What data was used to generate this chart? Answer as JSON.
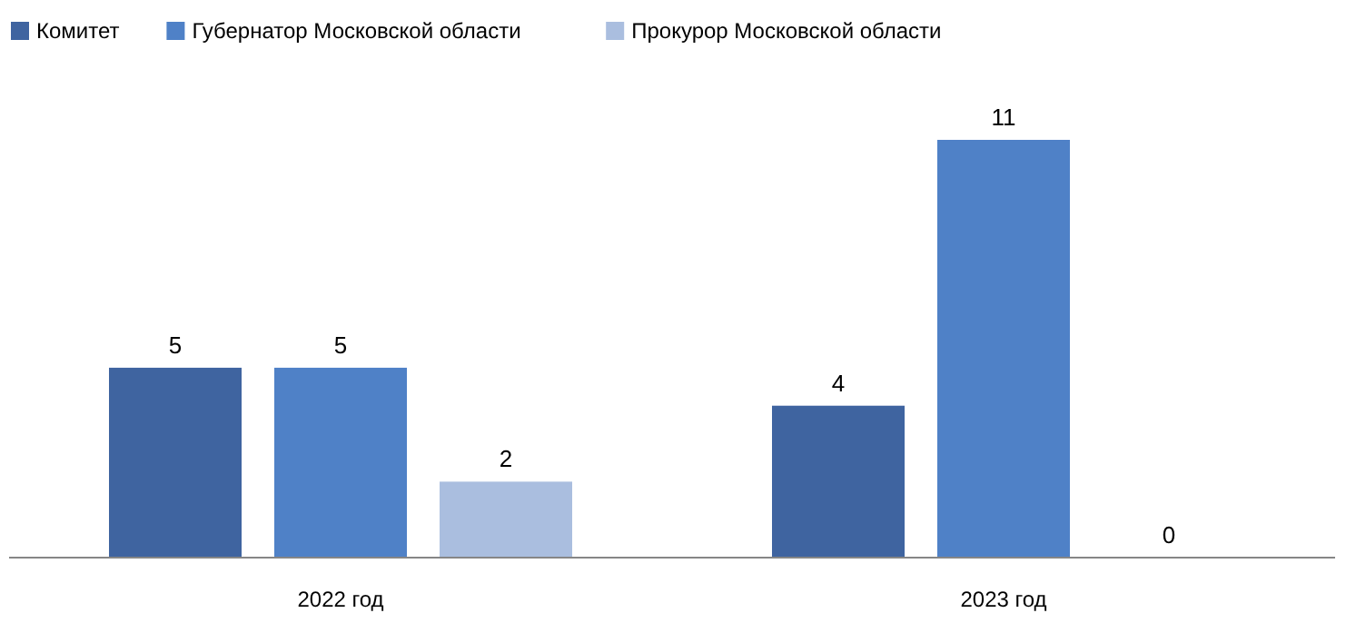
{
  "chart_data": {
    "type": "bar",
    "categories": [
      "2022 год",
      "2023 год"
    ],
    "series": [
      {
        "name": "Комитет",
        "color": "#3f64a0",
        "values": [
          5,
          4
        ]
      },
      {
        "name": "Губернатор Московской области",
        "color": "#4f81c7",
        "values": [
          5,
          11
        ]
      },
      {
        "name": "Прокурор Московской области",
        "color": "#aabedf",
        "values": [
          2,
          0
        ]
      }
    ],
    "data_labels": true,
    "legend": "top left"
  }
}
